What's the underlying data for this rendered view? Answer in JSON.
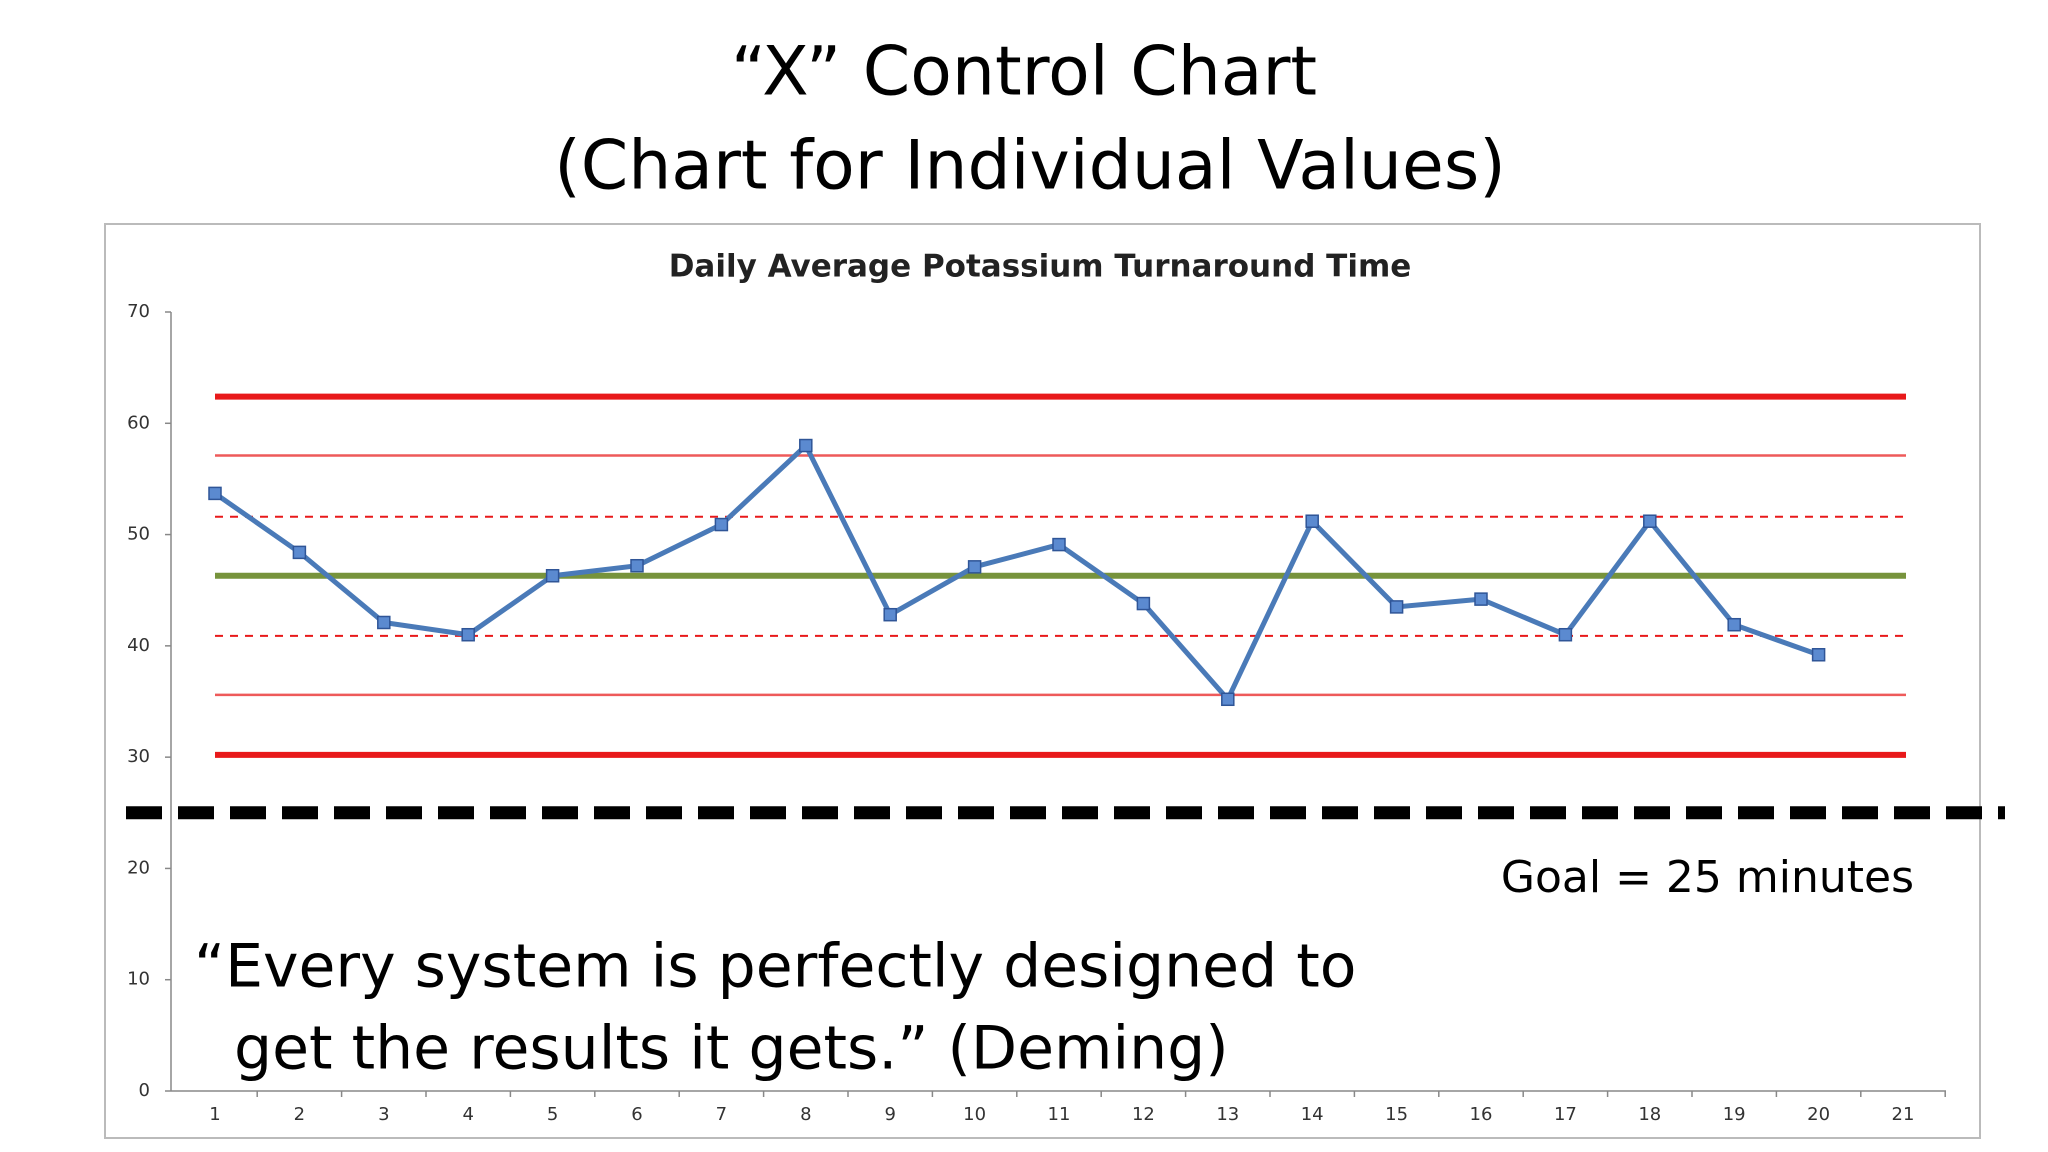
{
  "chart_data": {
    "type": "line",
    "title": "“X” Control Chart",
    "subtitle": "(Chart for Individual Values)",
    "chart_title": "Daily Average Potassium Turnaround Time",
    "categories": [
      "1",
      "2",
      "3",
      "4",
      "5",
      "6",
      "7",
      "8",
      "9",
      "10",
      "11",
      "12",
      "13",
      "14",
      "15",
      "16",
      "17",
      "18",
      "19",
      "20",
      "21"
    ],
    "series": [
      {
        "color": "#4a7ab8",
        "values": [
          53.7,
          48.4,
          42.1,
          41.0,
          46.3,
          47.2,
          50.9,
          58.0,
          42.8,
          47.1,
          49.1,
          43.8,
          35.2,
          51.2,
          43.5,
          44.2,
          41.0,
          51.2,
          41.9,
          39.2,
          null
        ]
      }
    ],
    "reference_lines": [
      {
        "value": 62.4,
        "color": "#e8191a",
        "style": "thick"
      },
      {
        "value": 57.1,
        "color": "#ee5a5a",
        "style": "thin"
      },
      {
        "value": 51.6,
        "color": "#e8191a",
        "style": "dashed"
      },
      {
        "value": 46.3,
        "color": "#77933c",
        "style": "thick"
      },
      {
        "value": 40.9,
        "color": "#e8191a",
        "style": "dashed"
      },
      {
        "value": 35.6,
        "color": "#ee5a5a",
        "style": "thin"
      },
      {
        "value": 30.2,
        "color": "#e8191a",
        "style": "thick"
      },
      {
        "value": 25,
        "color": "#000000",
        "style": "goal"
      }
    ],
    "goal_label": "Goal = 25 minutes",
    "quote": [
      "“Every system is perfectly designed to",
      "get the results it gets.”  (Deming)"
    ],
    "ylim": [
      0,
      70
    ],
    "yticks": [
      0,
      10,
      20,
      30,
      40,
      50,
      60,
      70
    ]
  }
}
